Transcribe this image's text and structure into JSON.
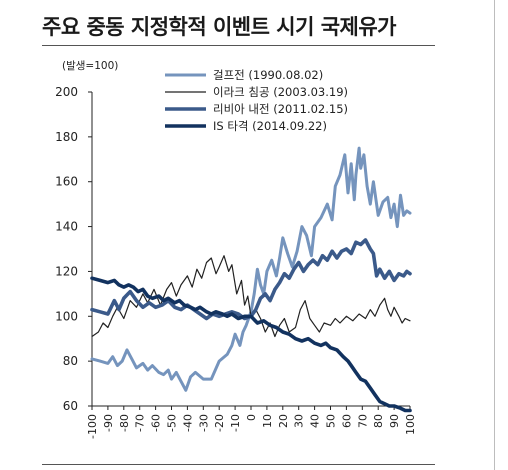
{
  "title": "주요 중동 지정학적 이벤트 시기 국제유가",
  "chart_data": {
    "type": "line",
    "unit_label": "(발생=100)",
    "ylim": [
      60,
      200
    ],
    "yticks": [
      60,
      80,
      100,
      120,
      140,
      160,
      180,
      200
    ],
    "xlim": [
      -100,
      100
    ],
    "xticks": [
      -100,
      -90,
      -80,
      -70,
      -60,
      -50,
      -40,
      -30,
      -20,
      -10,
      0,
      10,
      20,
      30,
      40,
      50,
      60,
      70,
      80,
      90,
      100
    ],
    "legend_position": "top",
    "series": [
      {
        "name": "걸프전 (1990.08.02)",
        "color": "#7594bd",
        "width": 3,
        "points": [
          [
            -100,
            81
          ],
          [
            -95,
            80
          ],
          [
            -90,
            79
          ],
          [
            -87,
            82
          ],
          [
            -84,
            78
          ],
          [
            -81,
            80
          ],
          [
            -78,
            85
          ],
          [
            -75,
            81
          ],
          [
            -72,
            77
          ],
          [
            -68,
            79
          ],
          [
            -65,
            76
          ],
          [
            -62,
            78
          ],
          [
            -58,
            75
          ],
          [
            -55,
            74
          ],
          [
            -52,
            76
          ],
          [
            -50,
            72
          ],
          [
            -47,
            75
          ],
          [
            -44,
            71
          ],
          [
            -41,
            67
          ],
          [
            -38,
            73
          ],
          [
            -35,
            75
          ],
          [
            -30,
            72
          ],
          [
            -25,
            72
          ],
          [
            -20,
            80
          ],
          [
            -15,
            83
          ],
          [
            -12,
            87
          ],
          [
            -10,
            92
          ],
          [
            -7,
            87
          ],
          [
            -5,
            93
          ],
          [
            -3,
            96
          ],
          [
            0,
            102
          ],
          [
            2,
            110
          ],
          [
            4,
            121
          ],
          [
            6,
            114
          ],
          [
            8,
            110
          ],
          [
            10,
            120
          ],
          [
            13,
            125
          ],
          [
            16,
            118
          ],
          [
            18,
            126
          ],
          [
            20,
            135
          ],
          [
            23,
            128
          ],
          [
            26,
            122
          ],
          [
            29,
            129
          ],
          [
            32,
            140
          ],
          [
            35,
            136
          ],
          [
            38,
            127
          ],
          [
            40,
            140
          ],
          [
            44,
            144
          ],
          [
            48,
            150
          ],
          [
            51,
            143
          ],
          [
            53,
            158
          ],
          [
            56,
            163
          ],
          [
            59,
            172
          ],
          [
            61,
            155
          ],
          [
            63,
            168
          ],
          [
            65,
            152
          ],
          [
            66,
            163
          ],
          [
            68,
            175
          ],
          [
            69,
            166
          ],
          [
            71,
            172
          ],
          [
            73,
            158
          ],
          [
            75,
            150
          ],
          [
            77,
            160
          ],
          [
            80,
            145
          ],
          [
            83,
            151
          ],
          [
            86,
            153
          ],
          [
            88,
            144
          ],
          [
            90,
            150
          ],
          [
            92,
            140
          ],
          [
            94,
            154
          ],
          [
            96,
            145
          ],
          [
            98,
            147
          ],
          [
            100,
            146
          ]
        ]
      },
      {
        "name": "이라크 침공 (2003.03.19)",
        "color": "#222222",
        "width": 1.2,
        "points": [
          [
            -100,
            91
          ],
          [
            -96,
            93
          ],
          [
            -93,
            97
          ],
          [
            -90,
            95
          ],
          [
            -87,
            100
          ],
          [
            -84,
            104
          ],
          [
            -80,
            99
          ],
          [
            -76,
            107
          ],
          [
            -72,
            104
          ],
          [
            -68,
            110
          ],
          [
            -65,
            106
          ],
          [
            -61,
            112
          ],
          [
            -57,
            105
          ],
          [
            -53,
            112
          ],
          [
            -50,
            115
          ],
          [
            -47,
            109
          ],
          [
            -44,
            114
          ],
          [
            -40,
            118
          ],
          [
            -37,
            113
          ],
          [
            -34,
            121
          ],
          [
            -31,
            117
          ],
          [
            -28,
            124
          ],
          [
            -25,
            126
          ],
          [
            -22,
            119
          ],
          [
            -20,
            122
          ],
          [
            -17,
            127
          ],
          [
            -14,
            120
          ],
          [
            -12,
            123
          ],
          [
            -9,
            110
          ],
          [
            -6,
            116
          ],
          [
            -4,
            105
          ],
          [
            -2,
            109
          ],
          [
            0,
            100
          ],
          [
            3,
            103
          ],
          [
            6,
            99
          ],
          [
            9,
            93
          ],
          [
            12,
            97
          ],
          [
            15,
            91
          ],
          [
            18,
            96
          ],
          [
            21,
            99
          ],
          [
            24,
            93
          ],
          [
            28,
            95
          ],
          [
            31,
            103
          ],
          [
            34,
            107
          ],
          [
            37,
            99
          ],
          [
            40,
            96
          ],
          [
            43,
            93
          ],
          [
            46,
            97
          ],
          [
            50,
            96
          ],
          [
            53,
            99
          ],
          [
            56,
            97
          ],
          [
            60,
            100
          ],
          [
            64,
            98
          ],
          [
            68,
            101
          ],
          [
            72,
            99
          ],
          [
            75,
            103
          ],
          [
            78,
            100
          ],
          [
            81,
            105
          ],
          [
            84,
            108
          ],
          [
            86,
            103
          ],
          [
            88,
            100
          ],
          [
            90,
            104
          ],
          [
            93,
            100
          ],
          [
            95,
            97
          ],
          [
            97,
            99
          ],
          [
            100,
            98
          ]
        ]
      },
      {
        "name": "리비아 내전 (2011.02.15)",
        "color": "#3b5a8a",
        "width": 3.6,
        "points": [
          [
            -100,
            103
          ],
          [
            -95,
            102
          ],
          [
            -90,
            101
          ],
          [
            -86,
            107
          ],
          [
            -83,
            103
          ],
          [
            -80,
            108
          ],
          [
            -76,
            111
          ],
          [
            -72,
            107
          ],
          [
            -68,
            104
          ],
          [
            -64,
            106
          ],
          [
            -60,
            104
          ],
          [
            -56,
            105
          ],
          [
            -52,
            107
          ],
          [
            -48,
            104
          ],
          [
            -44,
            103
          ],
          [
            -40,
            105
          ],
          [
            -36,
            103
          ],
          [
            -32,
            101
          ],
          [
            -28,
            99
          ],
          [
            -24,
            101
          ],
          [
            -20,
            100
          ],
          [
            -16,
            101
          ],
          [
            -12,
            102
          ],
          [
            -8,
            101
          ],
          [
            -4,
            99
          ],
          [
            0,
            100
          ],
          [
            3,
            103
          ],
          [
            6,
            108
          ],
          [
            9,
            110
          ],
          [
            12,
            107
          ],
          [
            15,
            112
          ],
          [
            18,
            115
          ],
          [
            21,
            119
          ],
          [
            24,
            117
          ],
          [
            27,
            121
          ],
          [
            30,
            124
          ],
          [
            33,
            120
          ],
          [
            36,
            123
          ],
          [
            39,
            125
          ],
          [
            42,
            123
          ],
          [
            45,
            127
          ],
          [
            48,
            125
          ],
          [
            51,
            129
          ],
          [
            54,
            126
          ],
          [
            57,
            129
          ],
          [
            60,
            130
          ],
          [
            63,
            128
          ],
          [
            66,
            133
          ],
          [
            69,
            132
          ],
          [
            72,
            134
          ],
          [
            75,
            130
          ],
          [
            77,
            128
          ],
          [
            79,
            118
          ],
          [
            81,
            121
          ],
          [
            84,
            117
          ],
          [
            87,
            120
          ],
          [
            90,
            116
          ],
          [
            93,
            119
          ],
          [
            96,
            118
          ],
          [
            98,
            120
          ],
          [
            100,
            119
          ]
        ]
      },
      {
        "name": "IS 타격 (2014.09.22)",
        "color": "#12325f",
        "width": 3.6,
        "points": [
          [
            -100,
            117
          ],
          [
            -95,
            116
          ],
          [
            -90,
            115
          ],
          [
            -86,
            116
          ],
          [
            -83,
            114
          ],
          [
            -80,
            113
          ],
          [
            -77,
            114
          ],
          [
            -74,
            113
          ],
          [
            -71,
            111
          ],
          [
            -68,
            112
          ],
          [
            -65,
            109
          ],
          [
            -62,
            108
          ],
          [
            -58,
            109
          ],
          [
            -55,
            107
          ],
          [
            -52,
            108
          ],
          [
            -48,
            106
          ],
          [
            -45,
            107
          ],
          [
            -42,
            105
          ],
          [
            -38,
            104
          ],
          [
            -35,
            103
          ],
          [
            -32,
            104
          ],
          [
            -28,
            102
          ],
          [
            -25,
            101
          ],
          [
            -22,
            102
          ],
          [
            -18,
            101
          ],
          [
            -15,
            100
          ],
          [
            -12,
            101
          ],
          [
            -8,
            99
          ],
          [
            -4,
            100
          ],
          [
            0,
            100
          ],
          [
            4,
            97
          ],
          [
            8,
            98
          ],
          [
            12,
            96
          ],
          [
            16,
            95
          ],
          [
            20,
            93
          ],
          [
            24,
            92
          ],
          [
            28,
            90
          ],
          [
            32,
            89
          ],
          [
            36,
            90
          ],
          [
            40,
            88
          ],
          [
            44,
            87
          ],
          [
            47,
            88
          ],
          [
            50,
            86
          ],
          [
            54,
            85
          ],
          [
            58,
            82
          ],
          [
            61,
            80
          ],
          [
            63,
            78
          ],
          [
            66,
            75
          ],
          [
            69,
            72
          ],
          [
            72,
            71
          ],
          [
            75,
            68
          ],
          [
            78,
            65
          ],
          [
            81,
            62
          ],
          [
            84,
            61
          ],
          [
            87,
            60
          ],
          [
            90,
            60
          ],
          [
            94,
            59
          ],
          [
            97,
            58
          ],
          [
            100,
            58
          ]
        ]
      }
    ]
  }
}
